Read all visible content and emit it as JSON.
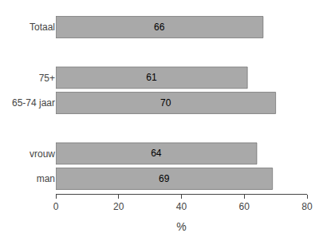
{
  "chart_data": {
    "type": "bar",
    "orientation": "horizontal",
    "categories": [
      "man",
      "vrouw",
      null,
      "65-74 jaar",
      "75+",
      null,
      "Totaal"
    ],
    "values": [
      69,
      64,
      null,
      70,
      61,
      null,
      66
    ],
    "color": "#a9a9a9",
    "xlabel": "%",
    "xlim": [
      0,
      80
    ],
    "xticks": [
      0,
      20,
      40,
      60,
      80
    ],
    "data_labels": true,
    "grid": false
  }
}
